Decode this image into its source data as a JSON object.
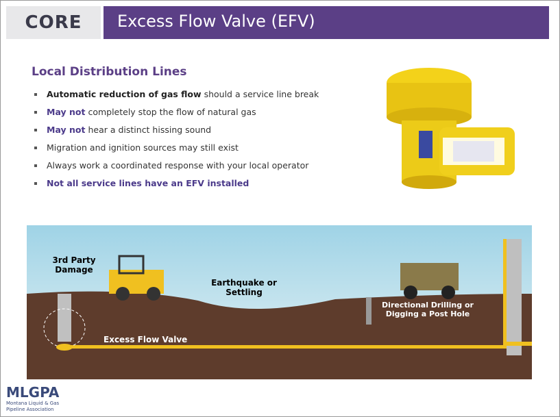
{
  "header": {
    "logo": "CORE",
    "title": "Excess Flow Valve (EFV)"
  },
  "content": {
    "heading": "Local Distribution Lines",
    "bullets": [
      [
        {
          "text": "Automatic reduction of gas flow",
          "style": "strong"
        },
        {
          "text": "should a service line break",
          "style": "normal"
        }
      ],
      [
        {
          "text": "May not",
          "style": "accent"
        },
        {
          "text": "completely stop the flow of natural gas",
          "style": "normal"
        }
      ],
      [
        {
          "text": "May not",
          "style": "accent"
        },
        {
          "text": "hear a distinct hissing sound",
          "style": "normal"
        }
      ],
      [
        {
          "text": "Migration and ignition sources may still exist",
          "style": "normal"
        }
      ],
      [
        {
          "text": "Always work a coordinated response with your local operator",
          "style": "normal"
        }
      ],
      [
        {
          "text": "Not all service lines have an EFV installed",
          "style": "accent"
        }
      ]
    ]
  },
  "illustration": {
    "labels": [
      "3rd Party Damage",
      "Earthquake or Settling",
      "Directional Drilling or Digging a Post Hole",
      "Excess Flow Valve"
    ]
  },
  "footer": {
    "logo": "MLGPA",
    "subtitle": "Montana Liquid & Gas Pipeline Association"
  }
}
